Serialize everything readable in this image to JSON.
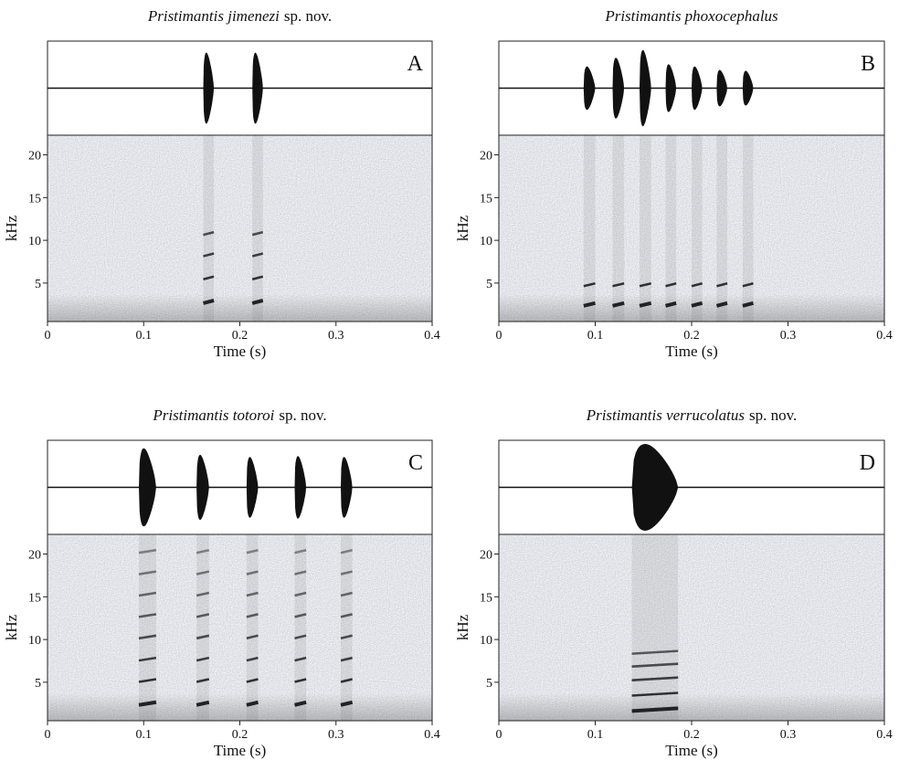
{
  "chart_data": [
    {
      "type": "spectrogram",
      "title": "Pristimantis jimenezi",
      "title_note": "sp. nov.",
      "panel": "A",
      "xlabel": "Time (s)",
      "ylabel": "kHz",
      "xlim": [
        0,
        0.4
      ],
      "xticks": [
        0,
        0.1,
        0.2,
        0.3,
        0.4
      ],
      "ylim": [
        0.5,
        22.3
      ],
      "yticks": [
        5,
        10,
        15,
        20
      ],
      "notes": [
        {
          "start": 0.162,
          "end": 0.173,
          "amplitude": 0.82
        },
        {
          "start": 0.213,
          "end": 0.224,
          "amplitude": 0.82
        }
      ],
      "harmonics": [
        2.8,
        5.6,
        8.3,
        10.8
      ]
    },
    {
      "type": "spectrogram",
      "title": "Pristimantis phoxocephalus",
      "panel": "B",
      "xlabel": "Time (s)",
      "ylabel": "kHz",
      "xlim": [
        0,
        0.4
      ],
      "xticks": [
        0,
        0.1,
        0.2,
        0.3,
        0.4
      ],
      "ylim": [
        0.5,
        22.3
      ],
      "yticks": [
        5,
        10,
        15,
        20
      ],
      "notes": [
        {
          "start": 0.088,
          "end": 0.1,
          "amplitude": 0.5
        },
        {
          "start": 0.118,
          "end": 0.13,
          "amplitude": 0.7
        },
        {
          "start": 0.146,
          "end": 0.158,
          "amplitude": 0.88
        },
        {
          "start": 0.173,
          "end": 0.184,
          "amplitude": 0.55
        },
        {
          "start": 0.2,
          "end": 0.211,
          "amplitude": 0.5
        },
        {
          "start": 0.226,
          "end": 0.237,
          "amplitude": 0.42
        },
        {
          "start": 0.253,
          "end": 0.264,
          "amplitude": 0.4
        }
      ],
      "harmonics": [
        2.5,
        4.8
      ]
    },
    {
      "type": "spectrogram",
      "title": "Pristimantis totoroi",
      "title_note": "sp. nov.",
      "panel": "C",
      "xlabel": "Time (s)",
      "ylabel": "kHz",
      "xlim": [
        0,
        0.4
      ],
      "xticks": [
        0,
        0.1,
        0.2,
        0.3,
        0.4
      ],
      "ylim": [
        0.5,
        22.3
      ],
      "yticks": [
        5,
        10,
        15,
        20
      ],
      "notes": [
        {
          "start": 0.095,
          "end": 0.113,
          "amplitude": 0.9
        },
        {
          "start": 0.155,
          "end": 0.168,
          "amplitude": 0.75
        },
        {
          "start": 0.207,
          "end": 0.219,
          "amplitude": 0.7
        },
        {
          "start": 0.257,
          "end": 0.269,
          "amplitude": 0.72
        },
        {
          "start": 0.305,
          "end": 0.317,
          "amplitude": 0.7
        }
      ],
      "harmonics": [
        2.5,
        5.2,
        7.7,
        10.3,
        12.8,
        15.3,
        17.8,
        20.3
      ]
    },
    {
      "type": "spectrogram",
      "title": "Pristimantis verrucolatus",
      "title_note": "sp. nov.",
      "panel": "D",
      "xlabel": "Time (s)",
      "ylabel": "kHz",
      "xlim": [
        0,
        0.4
      ],
      "xticks": [
        0,
        0.1,
        0.2,
        0.3,
        0.4
      ],
      "ylim": [
        0.5,
        22.3
      ],
      "yticks": [
        5,
        10,
        15,
        20
      ],
      "notes": [
        {
          "start": 0.138,
          "end": 0.186,
          "amplitude": 1
        }
      ],
      "harmonics": [
        1.8,
        3.6,
        5.4,
        7.0,
        8.5
      ]
    }
  ]
}
